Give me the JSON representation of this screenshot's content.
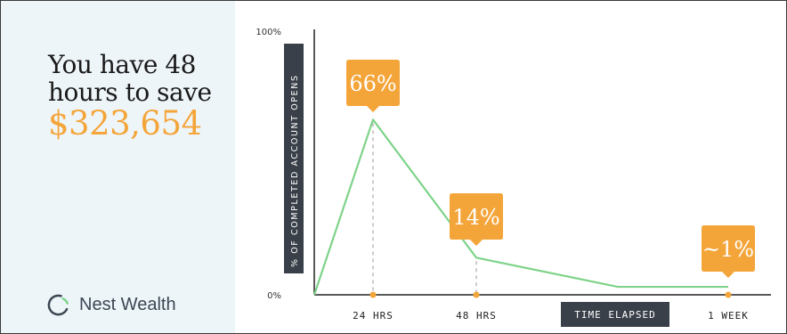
{
  "promo": {
    "headline_line1": "You have 48",
    "headline_line2": "hours to save",
    "amount": "$323,654",
    "brand_name": "Nest Wealth"
  },
  "colors": {
    "accent": "#f4a53a",
    "line": "#7ed389",
    "axis_title_bg": "#3a4049",
    "panel_bg": "#eef5f9"
  },
  "chart_data": {
    "type": "line",
    "title": "",
    "ylabel": "% OF COMPLETED ACCOUNT OPENS",
    "xlabel": "TIME ELAPSED",
    "ylim": [
      0,
      100
    ],
    "yticks": [
      "100%",
      "0%"
    ],
    "x_ticks": [
      "24 HRS",
      "48 HRS",
      "1 WEEK"
    ],
    "series": [
      {
        "x": [
          "0",
          "24 HRS",
          "48 HRS",
          "",
          "1 WEEK"
        ],
        "values": [
          0,
          66,
          14,
          3,
          3
        ]
      }
    ],
    "callouts": [
      {
        "label": "66%",
        "x": "24 HRS",
        "value": 66
      },
      {
        "label": "14%",
        "x": "48 HRS",
        "value": 14
      },
      {
        "label": "~1%",
        "x": "1 WEEK",
        "value": 3
      }
    ],
    "grid": false
  }
}
